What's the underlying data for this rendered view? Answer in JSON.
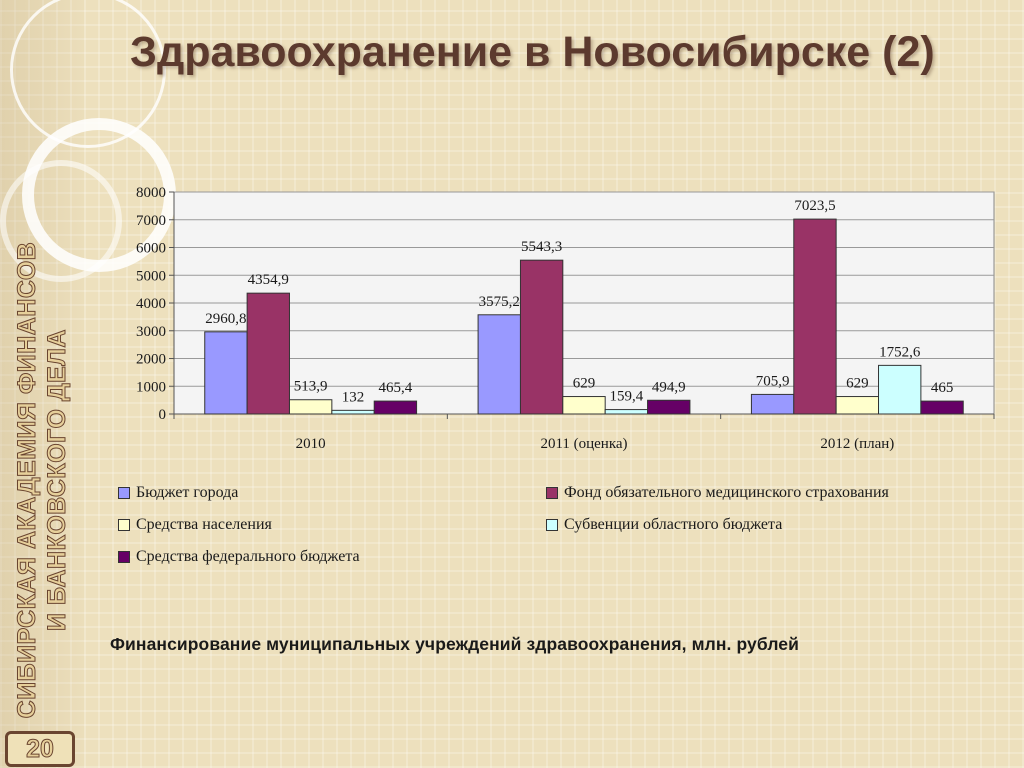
{
  "slide": {
    "title": "Здравоохранение в Новосибирске (2)",
    "side_text_line1": "Сибирская академия финансов",
    "side_text_line2": "и банковского дела",
    "slide_number": "20",
    "caption": "Финансирование муниципальных учреждений здравоохранения, млн. рублей"
  },
  "chart_data": {
    "type": "bar",
    "categories": [
      "2010",
      "2011 (оценка)",
      "2012 (план)"
    ],
    "series": [
      {
        "name": "Бюджет города",
        "color": "#9999ff",
        "values": [
          2960.8,
          3575.2,
          705.9
        ],
        "labels": [
          "2960,8",
          "3575,2",
          "705,9"
        ]
      },
      {
        "name": "Фонд обязательного медицинского страхования",
        "color": "#993366",
        "values": [
          4354.9,
          5543.3,
          7023.5
        ],
        "labels": [
          "4354,9",
          "5543,3",
          "7023,5"
        ]
      },
      {
        "name": "Средства населения",
        "color": "#ffffcc",
        "values": [
          513.9,
          629,
          629
        ],
        "labels": [
          "513,9",
          "629",
          "629"
        ]
      },
      {
        "name": "Субвенции областного бюджета",
        "color": "#ccffff",
        "values": [
          132,
          159.4,
          1752.6
        ],
        "labels": [
          "132",
          "159,4",
          "1752,6"
        ]
      },
      {
        "name": "Средства федерального бюджета",
        "color": "#660066",
        "values": [
          465.4,
          494.9,
          465
        ],
        "labels": [
          "465,4",
          "494,9",
          "465"
        ]
      }
    ],
    "ylim": [
      0,
      8000
    ],
    "yticks": [
      "0",
      "1000",
      "2000",
      "3000",
      "4000",
      "5000",
      "6000",
      "7000",
      "8000"
    ],
    "grid": true,
    "legend_position": "bottom"
  }
}
